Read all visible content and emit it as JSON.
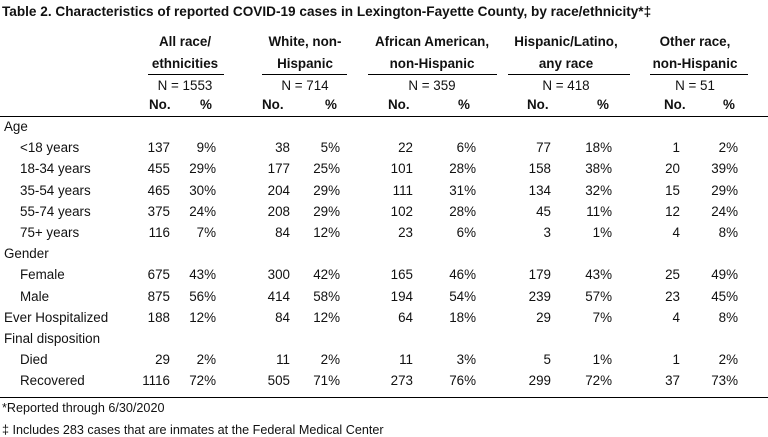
{
  "title": "Table 2. Characteristics of reported COVID-19 cases in Lexington-Fayette County, by race/ethnicity*‡",
  "groups": [
    {
      "line1": "All race/",
      "line2": "ethnicities",
      "n": "N = 1553"
    },
    {
      "line1": "White, non-",
      "line2": "Hispanic",
      "n": "N = 714"
    },
    {
      "line1": "African American,",
      "line2": "non-Hispanic",
      "n": "N = 359"
    },
    {
      "line1": "Hispanic/Latino,",
      "line2": "any race",
      "n": "N = 418"
    },
    {
      "line1": "Other race,",
      "line2": "non-Hispanic",
      "n": "N = 51"
    }
  ],
  "sub_headers": {
    "no": "No.",
    "pct": "%"
  },
  "rows": [
    {
      "label": "Age",
      "type": "section",
      "values": []
    },
    {
      "label": "<18 years",
      "type": "item",
      "values": [
        "137",
        "9%",
        "38",
        "5%",
        "22",
        "6%",
        "77",
        "18%",
        "1",
        "2%"
      ]
    },
    {
      "label": "18-34 years",
      "type": "item",
      "values": [
        "455",
        "29%",
        "177",
        "25%",
        "101",
        "28%",
        "158",
        "38%",
        "20",
        "39%"
      ]
    },
    {
      "label": "35-54 years",
      "type": "item",
      "values": [
        "465",
        "30%",
        "204",
        "29%",
        "111",
        "31%",
        "134",
        "32%",
        "15",
        "29%"
      ]
    },
    {
      "label": "55-74 years",
      "type": "item",
      "values": [
        "375",
        "24%",
        "208",
        "29%",
        "102",
        "28%",
        "45",
        "11%",
        "12",
        "24%"
      ]
    },
    {
      "label": "75+ years",
      "type": "item",
      "values": [
        "116",
        "7%",
        "84",
        "12%",
        "23",
        "6%",
        "3",
        "1%",
        "4",
        "8%"
      ]
    },
    {
      "label": "Gender",
      "type": "section",
      "values": []
    },
    {
      "label": "Female",
      "type": "item",
      "values": [
        "675",
        "43%",
        "300",
        "42%",
        "165",
        "46%",
        "179",
        "43%",
        "25",
        "49%"
      ]
    },
    {
      "label": "Male",
      "type": "item",
      "values": [
        "875",
        "56%",
        "414",
        "58%",
        "194",
        "54%",
        "239",
        "57%",
        "23",
        "45%"
      ]
    },
    {
      "label": "Ever Hospitalized",
      "type": "top",
      "values": [
        "188",
        "12%",
        "84",
        "12%",
        "64",
        "18%",
        "29",
        "7%",
        "4",
        "8%"
      ]
    },
    {
      "label": "Final disposition",
      "type": "section",
      "values": []
    },
    {
      "label": "Died",
      "type": "item",
      "values": [
        "29",
        "2%",
        "11",
        "2%",
        "11",
        "3%",
        "5",
        "1%",
        "1",
        "2%"
      ]
    },
    {
      "label": "Recovered",
      "type": "item",
      "values": [
        "1116",
        "72%",
        "505",
        "71%",
        "273",
        "76%",
        "299",
        "72%",
        "37",
        "73%"
      ]
    }
  ],
  "footnotes": [
    "*Reported through 6/30/2020",
    "‡ Includes 283 cases that are inmates at the Federal Medical Center"
  ]
}
